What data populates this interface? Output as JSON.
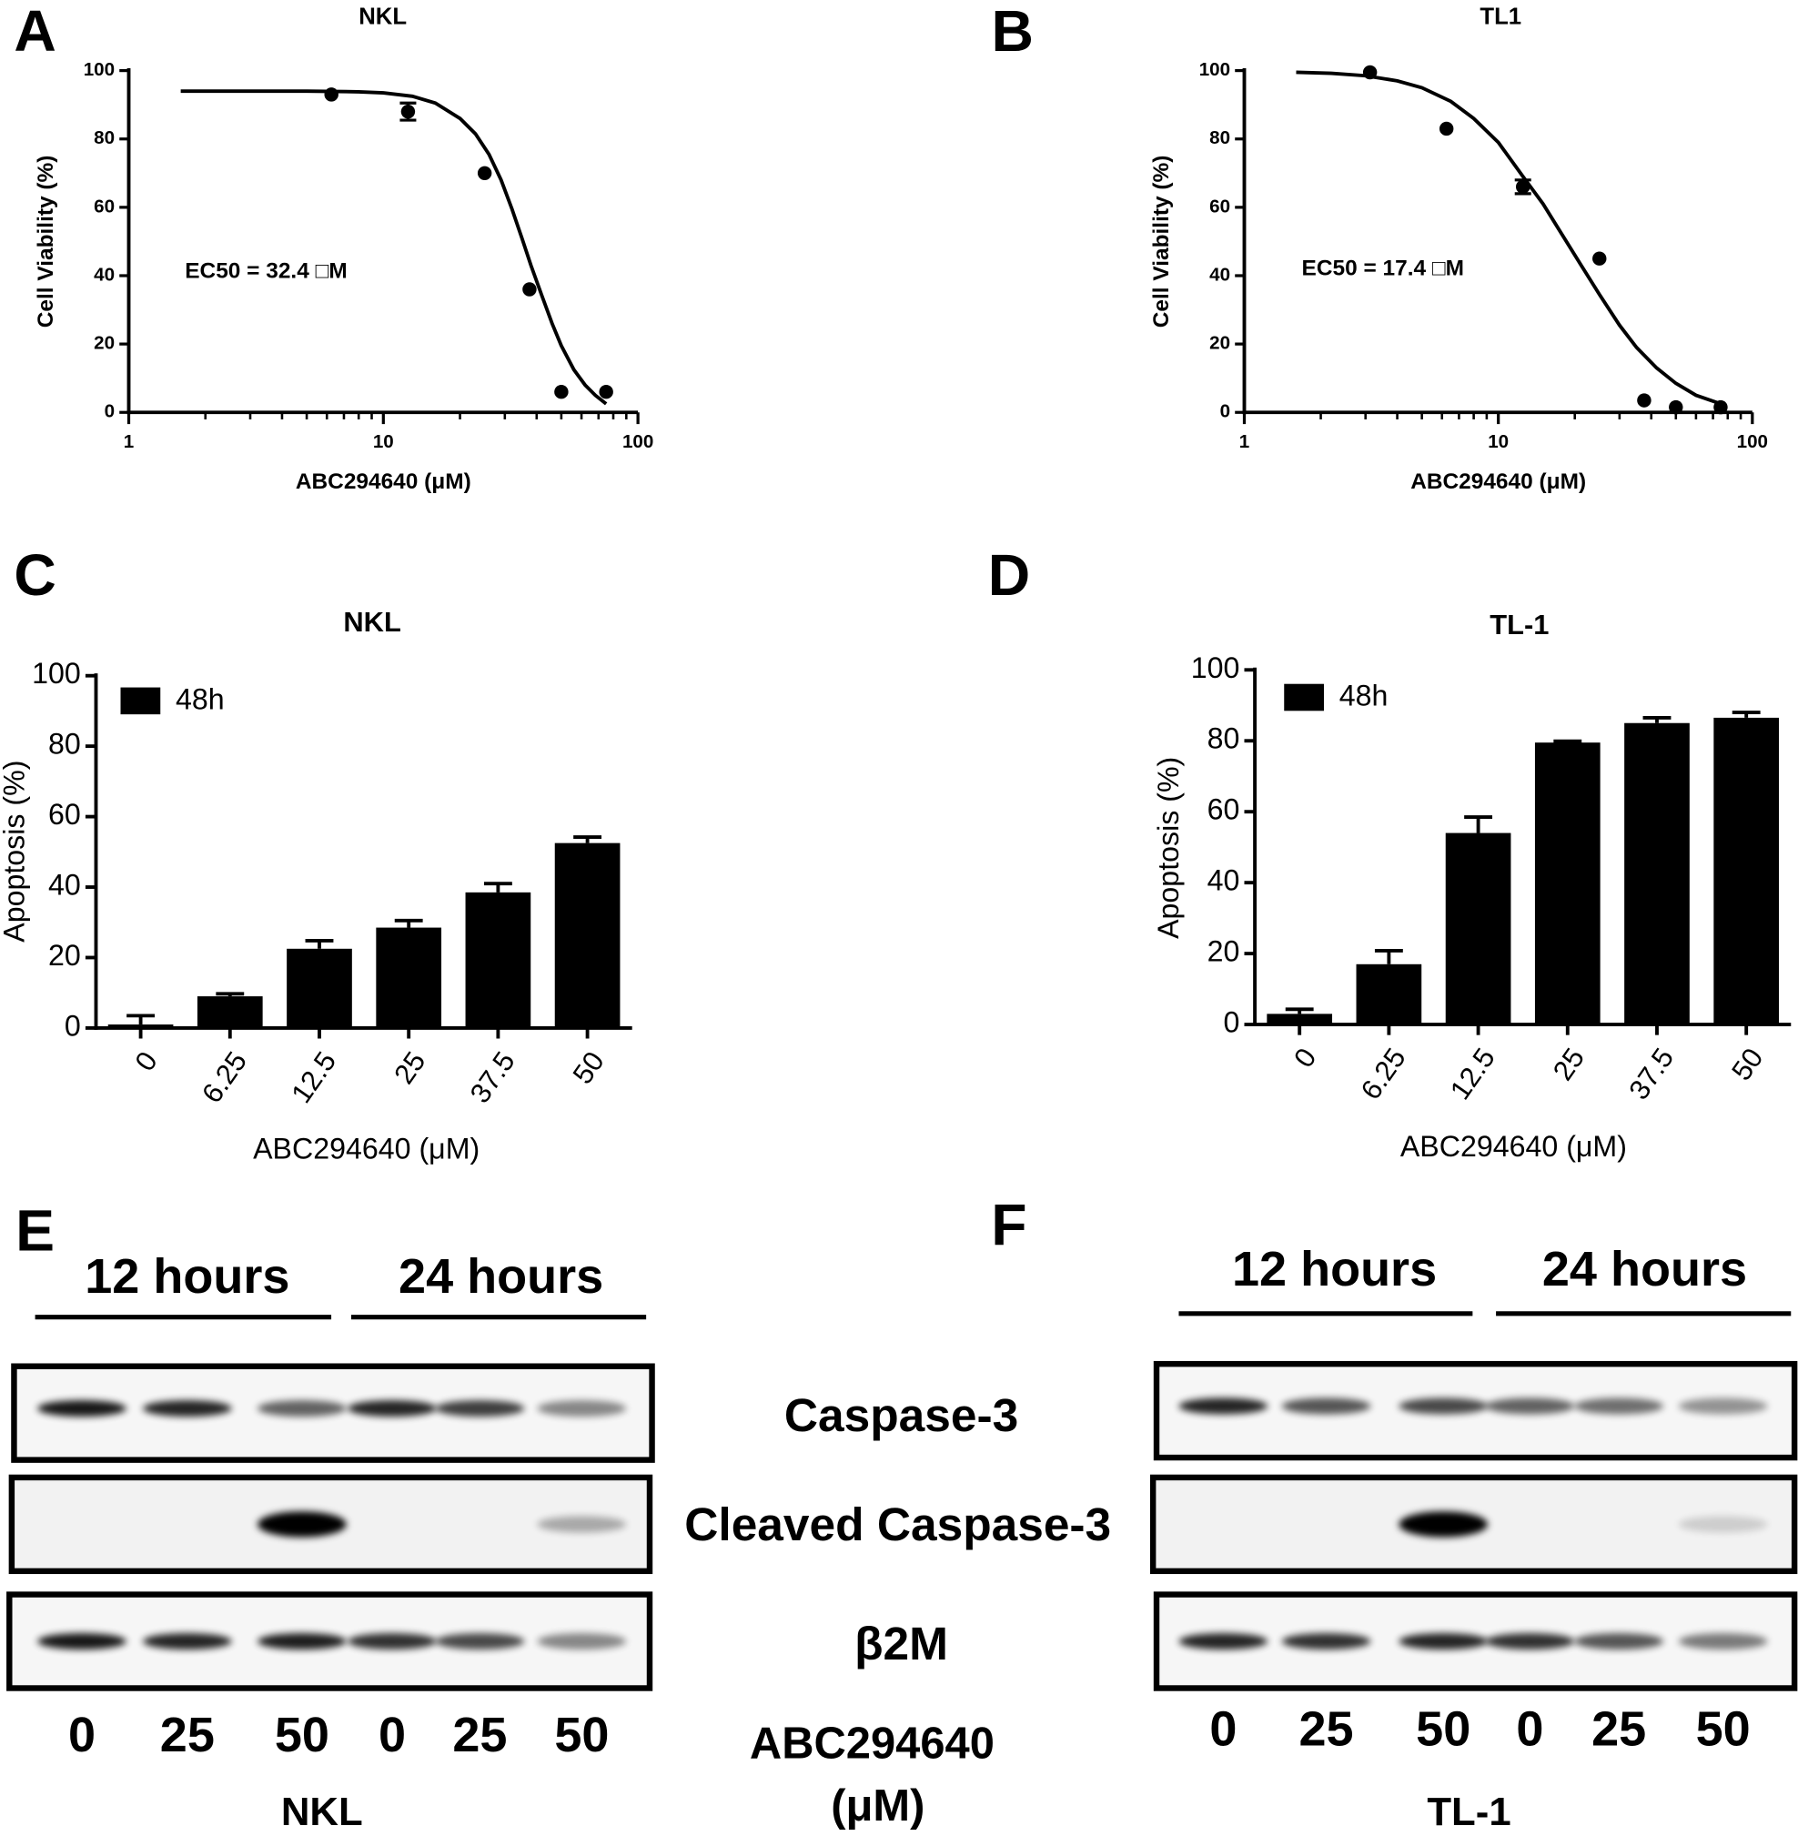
{
  "chart_data": [
    {
      "type": "scatter",
      "panel": "A",
      "title": "NKL",
      "xlabel": "ABC294640 (μM)",
      "ylabel": "Cell Viability (%)",
      "annotation": "EC50 = 32.4 □M",
      "xscale": "log",
      "xlim": [
        1,
        100
      ],
      "xticks": [
        1,
        10,
        100
      ],
      "xminorticks": [
        2,
        3,
        4,
        5,
        6,
        7,
        8,
        9,
        20,
        30,
        40,
        50,
        60,
        70,
        80,
        90
      ],
      "ylim": [
        0,
        100
      ],
      "yticks": [
        0,
        20,
        40,
        60,
        80,
        100
      ],
      "color": "#000000",
      "series": [
        {
          "x": [
            6.25,
            12.5,
            25,
            37.5,
            50,
            75
          ],
          "values": [
            93,
            88,
            70,
            36,
            6,
            6
          ],
          "errors": [
            null,
            2.5,
            null,
            null,
            null,
            null
          ]
        }
      ],
      "fit": {
        "x": [
          1.6,
          3,
          5,
          8,
          10,
          13,
          16,
          20,
          23,
          26,
          29,
          32,
          35,
          38,
          42,
          46,
          50,
          56,
          62,
          68,
          75
        ],
        "values": [
          94,
          94,
          94,
          93.8,
          93.5,
          92.5,
          90.5,
          86,
          81.5,
          75.5,
          68,
          59.5,
          51,
          43,
          34,
          26,
          19.5,
          12.5,
          8,
          5,
          2.5
        ]
      }
    },
    {
      "type": "scatter",
      "panel": "B",
      "title": "TL1",
      "xlabel": "ABC294640 (μM)",
      "ylabel": "Cell Viability (%)",
      "annotation": "EC50 = 17.4 □M",
      "xscale": "log",
      "xlim": [
        1,
        100
      ],
      "xticks": [
        1,
        10,
        100
      ],
      "xminorticks": [
        2,
        3,
        4,
        5,
        6,
        7,
        8,
        9,
        20,
        30,
        40,
        50,
        60,
        70,
        80,
        90
      ],
      "ylim": [
        0,
        100
      ],
      "yticks": [
        0,
        20,
        40,
        60,
        80,
        100
      ],
      "color": "#000000",
      "series": [
        {
          "x": [
            3.125,
            6.25,
            12.5,
            25,
            37.5,
            50,
            75
          ],
          "values": [
            99.5,
            83,
            66,
            45,
            3.5,
            1.5,
            1.5
          ],
          "errors": [
            null,
            null,
            2,
            null,
            null,
            null,
            null
          ]
        }
      ],
      "fit": {
        "x": [
          1.6,
          2.2,
          3,
          4,
          5,
          6.5,
          8,
          10,
          12.5,
          15,
          18,
          21,
          25,
          30,
          35,
          42,
          50,
          60,
          75
        ],
        "values": [
          99.5,
          99.2,
          98.5,
          97,
          95,
          91,
          86,
          79,
          69,
          61,
          51.5,
          43.5,
          34.5,
          25.5,
          19,
          13,
          8.5,
          5,
          2.5
        ]
      }
    },
    {
      "type": "bar",
      "panel": "C",
      "title": "NKL",
      "xlabel": "ABC294640 (μM)",
      "ylabel": "Apoptosis (%)",
      "categories": [
        "0",
        "6.25",
        "12.5",
        "25",
        "37.5",
        "50"
      ],
      "ylim": [
        0,
        100
      ],
      "yticks": [
        0,
        20,
        40,
        60,
        80,
        100
      ],
      "legend": "upper left",
      "series": [
        {
          "name": "48h",
          "color": "#000000",
          "values": [
            1,
            9,
            22.5,
            28.5,
            38.5,
            52.5
          ],
          "errors": [
            2.5,
            0.7,
            2.3,
            2,
            2.5,
            1.7
          ]
        }
      ]
    },
    {
      "type": "bar",
      "panel": "D",
      "title": "TL-1",
      "xlabel": "ABC294640 (μM)",
      "ylabel": "Apoptosis (%)",
      "categories": [
        "0",
        "6.25",
        "12.5",
        "25",
        "37.5",
        "50"
      ],
      "ylim": [
        0,
        100
      ],
      "yticks": [
        0,
        20,
        40,
        60,
        80,
        100
      ],
      "legend": "upper left",
      "series": [
        {
          "name": "48h",
          "color": "#000000",
          "values": [
            3,
            17,
            54,
            79.5,
            85,
            86.5
          ],
          "errors": [
            1.3,
            3.8,
            4.5,
            0.4,
            1.5,
            1.5
          ]
        }
      ]
    }
  ],
  "blots": {
    "band_labels": [
      "Caspase-3",
      "Cleaved Caspase-3",
      "β2M"
    ],
    "dose_label": [
      "ABC294640",
      "(μM)"
    ],
    "panels": [
      {
        "panel": "E",
        "time_labels": [
          "12 hours",
          "24 hours"
        ],
        "lanes": [
          "0",
          "25",
          "50",
          "0",
          "25",
          "50"
        ],
        "cell_line": "NKL"
      },
      {
        "panel": "F",
        "time_labels": [
          "12 hours",
          "24 hours"
        ],
        "lanes": [
          "0",
          "25",
          "50",
          "0",
          "25",
          "50"
        ],
        "cell_line": "TL-1"
      }
    ]
  }
}
